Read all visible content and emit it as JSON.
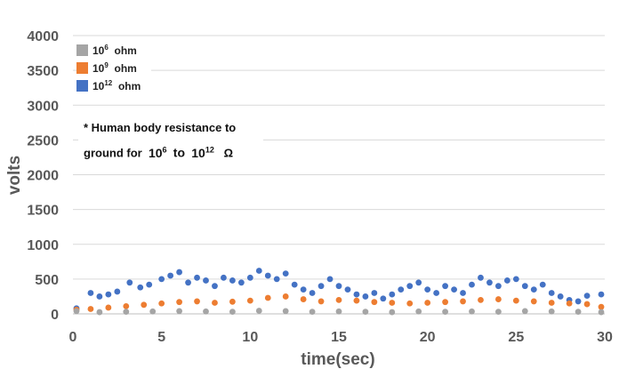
{
  "chart_data": {
    "type": "scatter",
    "xlabel": "time(sec)",
    "ylabel": "volts",
    "xlim": [
      0,
      30
    ],
    "ylim": [
      0,
      4000
    ],
    "x_ticks": [
      "0",
      "5",
      "10",
      "15",
      "20",
      "25",
      "30"
    ],
    "y_ticks": [
      "0",
      "500",
      "1000",
      "1500",
      "2000",
      "2500",
      "3000",
      "3500",
      "4000"
    ],
    "grid": "horizontal",
    "legend_placement": "top-left",
    "series": [
      {
        "name_base": "10",
        "name_exp": "6",
        "name_unit": "ohm",
        "color": "#a5a5a5",
        "points": [
          [
            0.2,
            40
          ],
          [
            1.5,
            25
          ],
          [
            3,
            30
          ],
          [
            4.5,
            35
          ],
          [
            6,
            40
          ],
          [
            7.5,
            35
          ],
          [
            9,
            30
          ],
          [
            10.5,
            45
          ],
          [
            12,
            40
          ],
          [
            13.5,
            30
          ],
          [
            15,
            35
          ],
          [
            16.5,
            30
          ],
          [
            18,
            25
          ],
          [
            19.5,
            35
          ],
          [
            21,
            30
          ],
          [
            22.5,
            35
          ],
          [
            24,
            30
          ],
          [
            25.5,
            40
          ],
          [
            27,
            35
          ],
          [
            28.5,
            30
          ],
          [
            29.8,
            25
          ]
        ]
      },
      {
        "name_base": "10",
        "name_exp": "9",
        "name_unit": "ohm",
        "color": "#ed7d31",
        "points": [
          [
            0.2,
            60
          ],
          [
            1,
            70
          ],
          [
            2,
            90
          ],
          [
            3,
            110
          ],
          [
            4,
            130
          ],
          [
            5,
            150
          ],
          [
            6,
            170
          ],
          [
            7,
            180
          ],
          [
            8,
            160
          ],
          [
            9,
            175
          ],
          [
            10,
            190
          ],
          [
            11,
            230
          ],
          [
            12,
            250
          ],
          [
            13,
            210
          ],
          [
            14,
            180
          ],
          [
            15,
            200
          ],
          [
            16,
            190
          ],
          [
            17,
            170
          ],
          [
            18,
            160
          ],
          [
            19,
            150
          ],
          [
            20,
            160
          ],
          [
            21,
            170
          ],
          [
            22,
            180
          ],
          [
            23,
            200
          ],
          [
            24,
            210
          ],
          [
            25,
            190
          ],
          [
            26,
            180
          ],
          [
            27,
            160
          ],
          [
            28,
            150
          ],
          [
            29,
            140
          ],
          [
            29.8,
            100
          ]
        ]
      },
      {
        "name_base": "10",
        "name_exp": "12",
        "name_unit": "ohm",
        "color": "#4472c4",
        "points": [
          [
            0.2,
            80
          ],
          [
            1,
            300
          ],
          [
            1.5,
            250
          ],
          [
            2,
            280
          ],
          [
            2.5,
            320
          ],
          [
            3.2,
            450
          ],
          [
            3.8,
            380
          ],
          [
            4.3,
            420
          ],
          [
            5,
            500
          ],
          [
            5.5,
            550
          ],
          [
            6,
            600
          ],
          [
            6.5,
            450
          ],
          [
            7,
            520
          ],
          [
            7.5,
            480
          ],
          [
            8,
            400
          ],
          [
            8.5,
            520
          ],
          [
            9,
            480
          ],
          [
            9.5,
            450
          ],
          [
            10,
            520
          ],
          [
            10.5,
            620
          ],
          [
            11,
            550
          ],
          [
            11.5,
            500
          ],
          [
            12,
            580
          ],
          [
            12.5,
            420
          ],
          [
            13,
            350
          ],
          [
            13.5,
            300
          ],
          [
            14,
            400
          ],
          [
            14.5,
            500
          ],
          [
            15,
            400
          ],
          [
            15.5,
            350
          ],
          [
            16,
            280
          ],
          [
            16.5,
            250
          ],
          [
            17,
            300
          ],
          [
            17.5,
            220
          ],
          [
            18,
            280
          ],
          [
            18.5,
            350
          ],
          [
            19,
            400
          ],
          [
            19.5,
            450
          ],
          [
            20,
            350
          ],
          [
            20.5,
            300
          ],
          [
            21,
            400
          ],
          [
            21.5,
            350
          ],
          [
            22,
            300
          ],
          [
            22.5,
            420
          ],
          [
            23,
            520
          ],
          [
            23.5,
            450
          ],
          [
            24,
            400
          ],
          [
            24.5,
            480
          ],
          [
            25,
            500
          ],
          [
            25.5,
            400
          ],
          [
            26,
            350
          ],
          [
            26.5,
            420
          ],
          [
            27,
            300
          ],
          [
            27.5,
            250
          ],
          [
            28,
            200
          ],
          [
            28.5,
            180
          ],
          [
            29,
            260
          ],
          [
            29.8,
            280
          ]
        ]
      }
    ]
  },
  "note": {
    "line1": "* Human body  resistance to",
    "line2_prefix": "ground  for",
    "line2_base1": "10",
    "line2_exp1": "6",
    "line2_mid": "to",
    "line2_base2": "10",
    "line2_exp2": "12",
    "line2_unit": "Ω"
  }
}
